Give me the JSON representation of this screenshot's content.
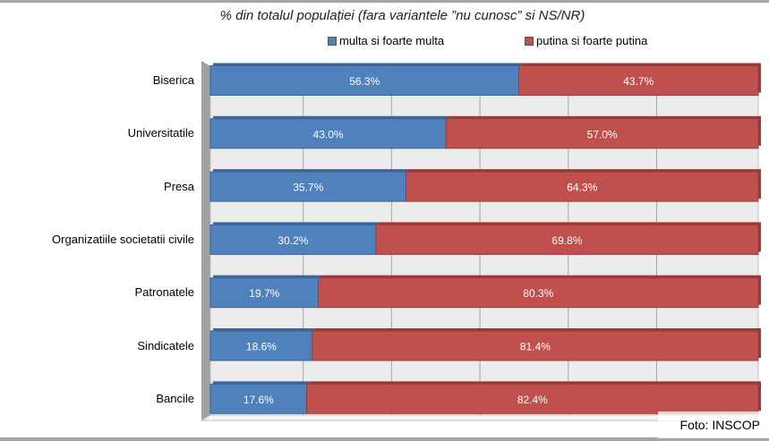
{
  "chart_data": {
    "type": "bar",
    "orientation": "horizontal",
    "stacked": "100%",
    "title": "% din totalul populației (fara variantele ”nu cunosc” si NS/NR)",
    "categories": [
      "Biserica",
      "Universitatile",
      "Presa",
      "Organizatiile societatii civile",
      "Patronatele",
      "Sindicatele",
      "Bancile"
    ],
    "series": [
      {
        "name": "multa si foarte multa",
        "color": "#4f81bd",
        "values": [
          56.3,
          43.0,
          35.7,
          30.2,
          19.7,
          18.6,
          17.6
        ],
        "labels": [
          "56.3%",
          "43.0%",
          "35.7%",
          "30.2%",
          "19.7%",
          "18.6%",
          "17.6%"
        ]
      },
      {
        "name": "putina si foarte putina",
        "color": "#c0504d",
        "values": [
          43.7,
          57.0,
          64.3,
          69.8,
          80.3,
          81.4,
          82.4
        ],
        "labels": [
          "43.7%",
          "57.0%",
          "64.3%",
          "69.8%",
          "80.3%",
          "81.4%",
          "82.4%"
        ]
      }
    ],
    "xlim": [
      0,
      100
    ],
    "grid": true,
    "legend": "top"
  },
  "credit": "Foto: INSCOP"
}
